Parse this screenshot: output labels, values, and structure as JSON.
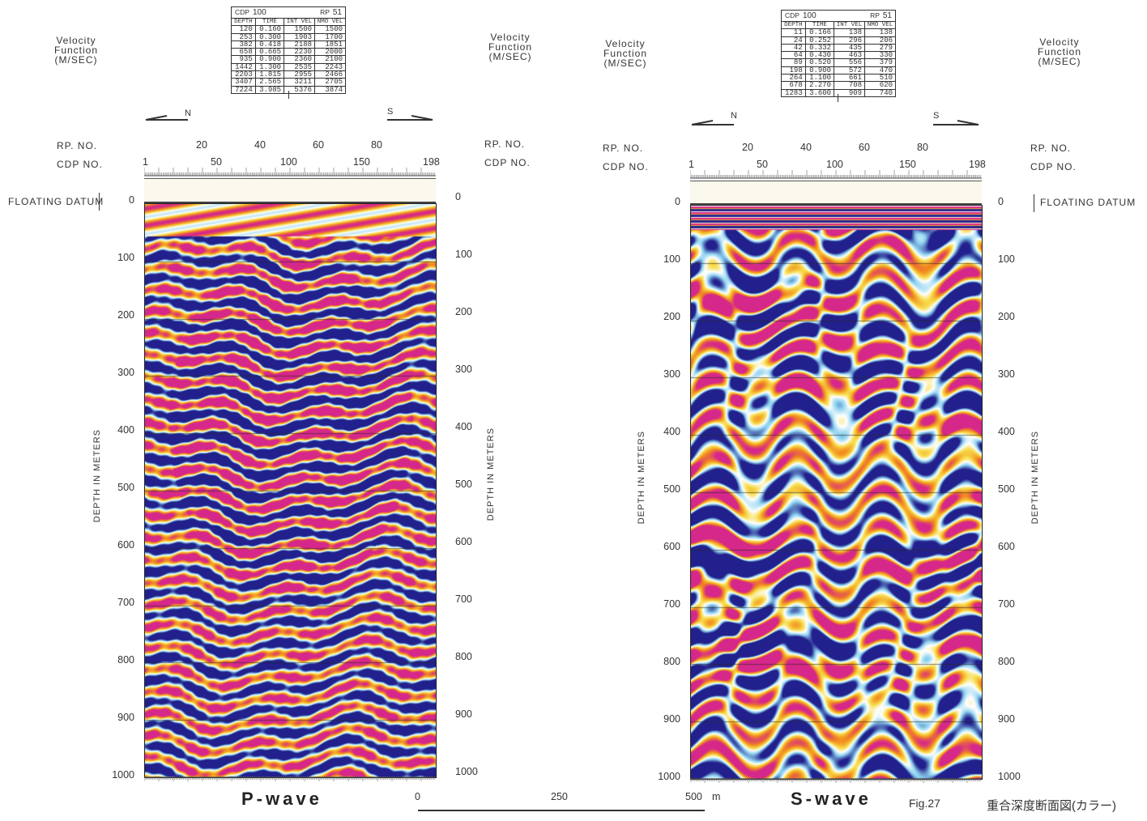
{
  "velocity_label": {
    "l1": "Velocity",
    "l2": "Function",
    "l3": "(M/SEC)"
  },
  "p_table": {
    "cdp_label": "CDP",
    "cdp_value": "100",
    "rp_label": "RP",
    "rp_value": "51",
    "headers": [
      "DEPTH",
      "TIME",
      "INT VEL",
      "NMO VEL"
    ],
    "rows": [
      [
        "120",
        "0.160",
        "1500",
        "1500"
      ],
      [
        "253",
        "0.300",
        "1903",
        "1700"
      ],
      [
        "382",
        "0.418",
        "2188",
        "1851"
      ],
      [
        "658",
        "0.665",
        "2230",
        "2000"
      ],
      [
        "935",
        "0.900",
        "2360",
        "2100"
      ],
      [
        "1442",
        "1.300",
        "2535",
        "2243"
      ],
      [
        "2203",
        "1.815",
        "2955",
        "2466"
      ],
      [
        "3407",
        "2.565",
        "3211",
        "2705"
      ],
      [
        "7224",
        "3.985",
        "5376",
        "3874"
      ]
    ]
  },
  "s_table": {
    "cdp_label": "CDP",
    "cdp_value": "100",
    "rp_label": "RP",
    "rp_value": "51",
    "headers": [
      "DEPTH",
      "TIME",
      "INT VEL",
      "NMO VEL"
    ],
    "rows": [
      [
        "11",
        "0.166",
        "138",
        "138"
      ],
      [
        "24",
        "0.252",
        "296",
        "206"
      ],
      [
        "42",
        "0.332",
        "435",
        "279"
      ],
      [
        "64",
        "0.430",
        "463",
        "330"
      ],
      [
        "89",
        "0.520",
        "556",
        "379"
      ],
      [
        "198",
        "0.900",
        "572",
        "470"
      ],
      [
        "264",
        "1.100",
        "661",
        "510"
      ],
      [
        "678",
        "2.270",
        "708",
        "620"
      ],
      [
        "1283",
        "3.600",
        "909",
        "740"
      ]
    ]
  },
  "direction": {
    "north": "N",
    "south": "S"
  },
  "rp_no_label": "RP. NO.",
  "cdp_no_label": "CDP NO.",
  "rp_ticks": [
    "20",
    "40",
    "60",
    "80"
  ],
  "cdp_ticks": [
    "1",
    "50",
    "100",
    "150",
    "198"
  ],
  "floating_datum": "FLOATING DATUM",
  "depth_label": "DEPTH IN METERS",
  "depth_ticks": [
    "0",
    "100",
    "200",
    "300",
    "400",
    "500",
    "600",
    "700",
    "800",
    "900",
    "1000"
  ],
  "p_wave_label": "P-wave",
  "s_wave_label": "S-wave",
  "scale_bar": {
    "t0": "0",
    "t1": "250",
    "t2": "500",
    "unit": "m"
  },
  "figure_number": "Fig.27",
  "caption_jp": "重合深度断面図(カラー)",
  "colors": {
    "magenta": "#d6278a",
    "navy": "#22208c",
    "orange": "#f28a1e",
    "yellow": "#f7dc4a",
    "cyan": "#8fd3f0",
    "white": "#ffffff"
  }
}
